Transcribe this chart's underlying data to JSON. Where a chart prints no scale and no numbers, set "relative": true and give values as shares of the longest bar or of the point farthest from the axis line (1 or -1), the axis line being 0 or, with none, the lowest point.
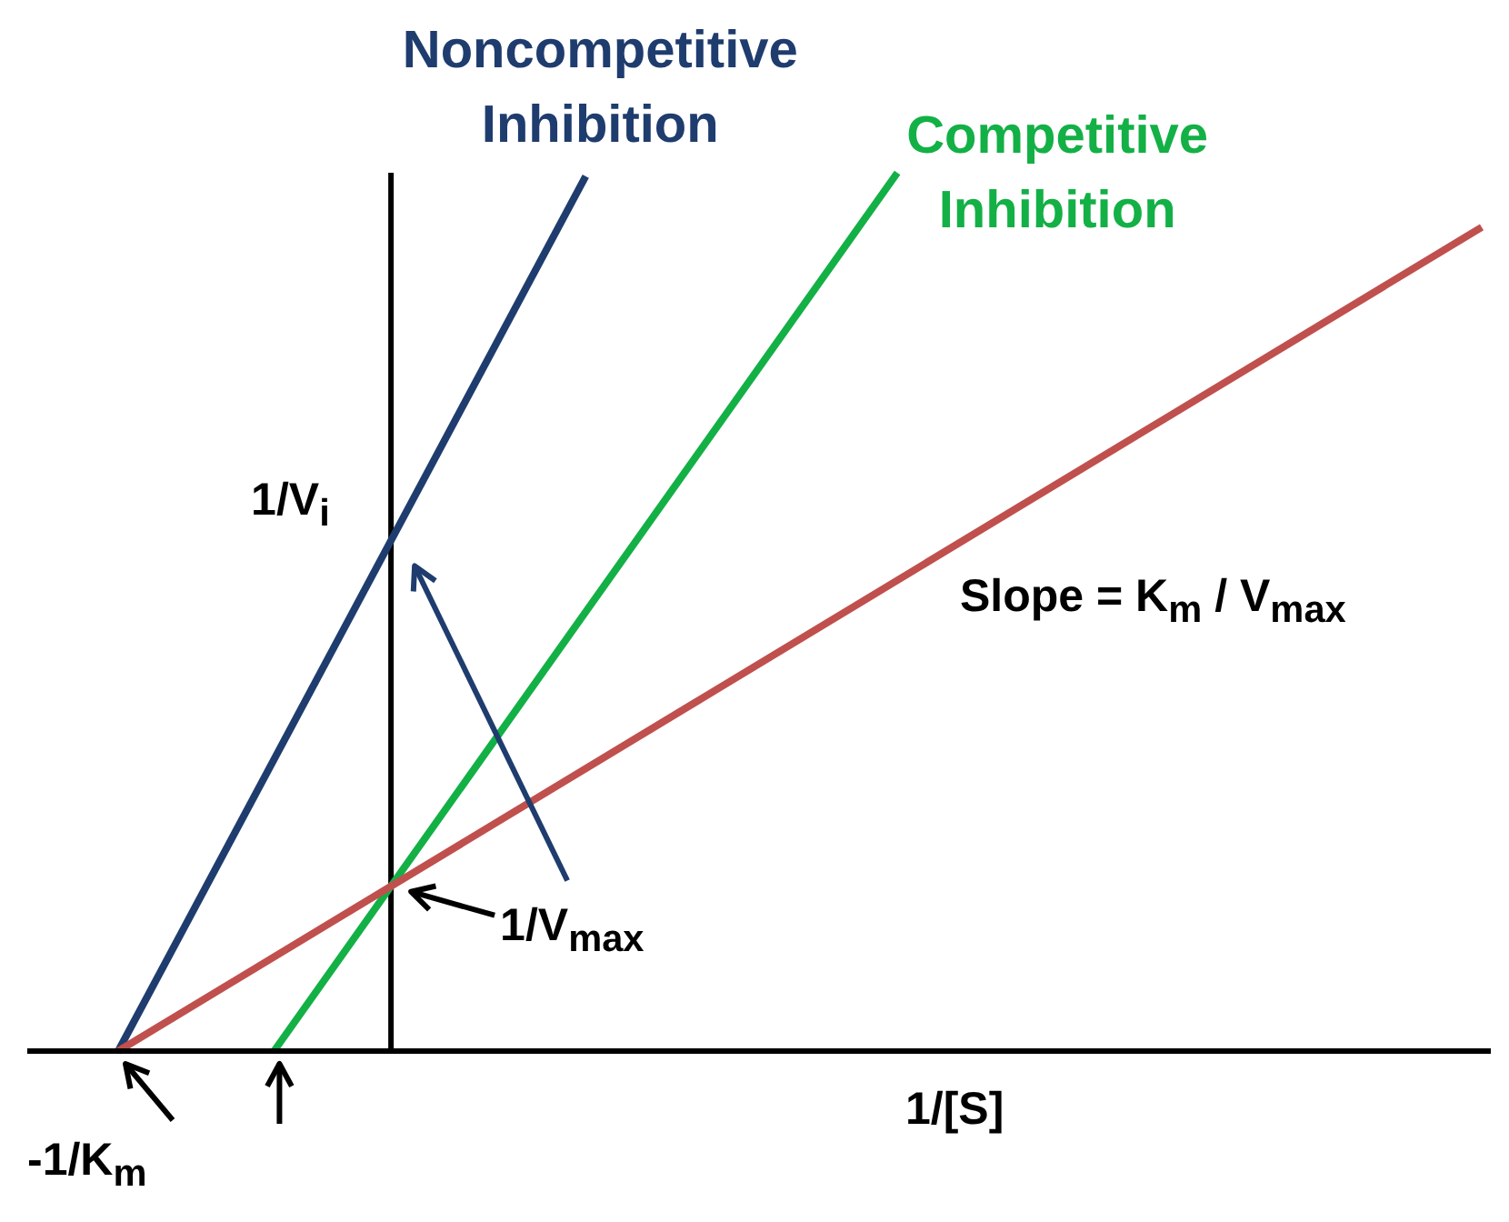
{
  "chart_data": {
    "type": "line",
    "relative": true,
    "xlabel": "1/[S]",
    "marker": "none",
    "line_style": "solid",
    "categories": [
      null,
      null,
      null,
      null,
      null,
      null,
      null,
      null,
      null,
      null,
      null,
      null,
      null,
      null,
      null,
      null,
      null,
      null,
      null,
      null,
      null,
      null,
      null,
      null,
      null,
      null,
      null,
      null,
      null,
      null,
      null,
      null,
      null,
      null,
      null,
      null
    ],
    "series": [
      {
        "name": "Noncompetitive Inhibition",
        "color": "#1f3c6e",
        "values": [
          0,
          null,
          null,
          null,
          null,
          null,
          null,
          null,
          null,
          null,
          null,
          null,
          0.996,
          null,
          null,
          null,
          null,
          null,
          null,
          null,
          null,
          null,
          null,
          null,
          null,
          null,
          null,
          null,
          null,
          null,
          null,
          null,
          null,
          null,
          null,
          null
        ]
      },
      {
        "name": "Competitive Inhibition",
        "color": "#13b046",
        "values": [
          null,
          null,
          null,
          null,
          0,
          null,
          null,
          null,
          null,
          null,
          null,
          null,
          null,
          null,
          null,
          null,
          null,
          null,
          null,
          null,
          1,
          null,
          null,
          null,
          null,
          null,
          null,
          null,
          null,
          null,
          null,
          null,
          null,
          null,
          null,
          null
        ]
      },
      {
        "color": "#c0504d",
        "values": [
          0,
          null,
          null,
          null,
          null,
          null,
          null,
          null,
          null,
          null,
          null,
          null,
          null,
          null,
          null,
          null,
          null,
          null,
          null,
          null,
          null,
          null,
          null,
          null,
          null,
          null,
          null,
          null,
          null,
          null,
          null,
          null,
          null,
          null,
          null,
          0.938
        ]
      }
    ],
    "annotations": [
      "1/V$_{i}$",
      "1/V$_{max}$",
      "-1/K$_{m}$",
      "Slope = K$_{m}$ / V$_{max}$"
    ]
  }
}
